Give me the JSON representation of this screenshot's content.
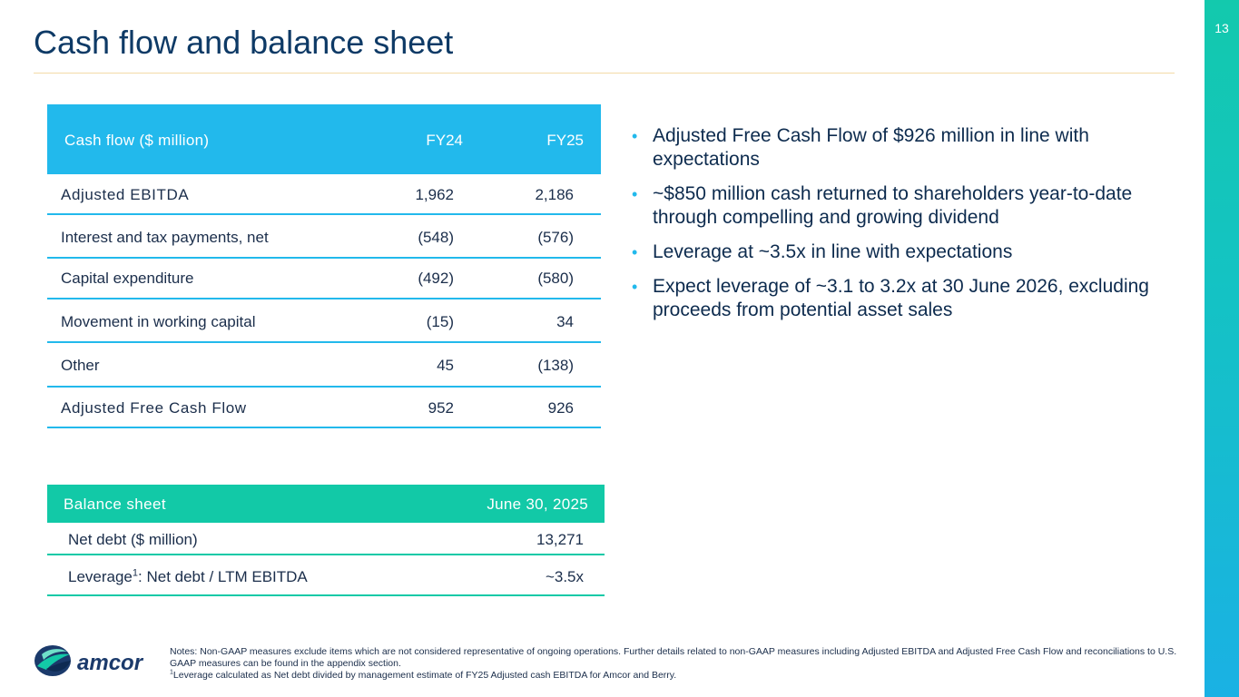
{
  "slide": {
    "title": "Cash flow and balance sheet",
    "page_number": "13"
  },
  "cash_flow_table": {
    "header": {
      "label": "Cash flow ($ million)",
      "fy24": "FY24",
      "fy25": "FY25"
    },
    "rows": [
      {
        "label": "Adjusted EBITDA",
        "fy24": "1,962",
        "fy25": "2,186"
      },
      {
        "label": "Interest and tax payments, net",
        "fy24": "(548)",
        "fy25": "(576)"
      },
      {
        "label": "Capital expenditure",
        "fy24": "(492)",
        "fy25": "(580)"
      },
      {
        "label": "Movement in working capital",
        "fy24": "(15)",
        "fy25": "34"
      },
      {
        "label": "Other",
        "fy24": "45",
        "fy25": "(138)"
      },
      {
        "label": "Adjusted Free Cash Flow",
        "fy24": "952",
        "fy25": "926"
      }
    ]
  },
  "balance_sheet_table": {
    "header": {
      "label": "Balance sheet",
      "date": "June 30, 2025"
    },
    "rows": [
      {
        "label": "Net debt ($ million)",
        "value": "13,271"
      },
      {
        "label_main": "Leverage",
        "label_sup": "1",
        "label_rest": ": Net debt / LTM EBITDA",
        "value": "~3.5x"
      }
    ]
  },
  "bullets": [
    "Adjusted Free Cash Flow of $926 million in line with expectations",
    "~$850 million cash returned to shareholders year-to-date through compelling and growing dividend",
    "Leverage at ~3.5x in line with expectations",
    "Expect leverage of ~3.1 to 3.2x at 30 June 2026, excluding proceeds from potential asset sales"
  ],
  "footer": {
    "logo_text": "amcor",
    "notes_line1": "Notes: Non-GAAP measures exclude items which are not considered representative of ongoing operations.  Further details related to non-GAAP measures including Adjusted EBITDA and Adjusted Free Cash Flow and reconciliations to U.S. GAAP measures can be found in the appendix section.",
    "notes_sup": "1",
    "notes_line2": "Leverage calculated as Net debt divided by management estimate of FY25 Adjusted cash EBITDA for Amcor and Berry."
  },
  "colors": {
    "title": "#0e3a66",
    "cash_flow_accent": "#22b9ec",
    "balance_sheet_accent": "#12c9a7",
    "side_bar_top": "#13c9ad",
    "side_bar_bottom": "#1ab1e4",
    "logo_blue": "#1b3a6b",
    "logo_green": "#13c9a7"
  }
}
